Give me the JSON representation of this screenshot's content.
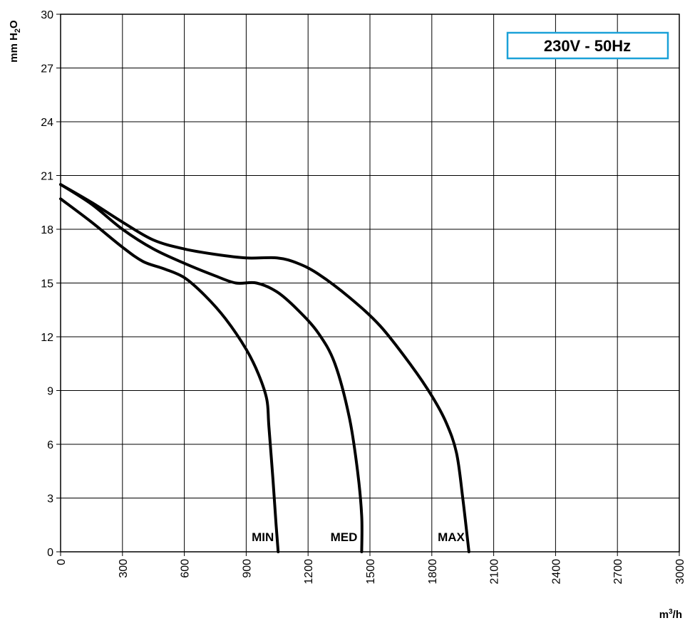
{
  "chart_data": {
    "type": "line",
    "title": "",
    "badge": "230V - 50Hz",
    "xlabel_base": "m",
    "xlabel_sup": "3",
    "xlabel_tail": "/h",
    "ylabel_base": "mm H",
    "ylabel_sub": "2",
    "ylabel_tail": "O",
    "xlim": [
      0,
      3000
    ],
    "ylim": [
      0,
      30
    ],
    "xticks": [
      "0",
      "300",
      "600",
      "900",
      "1200",
      "1500",
      "1800",
      "2100",
      "2400",
      "2700",
      "3000"
    ],
    "yticks": [
      "0",
      "3",
      "6",
      "9",
      "12",
      "15",
      "18",
      "21",
      "24",
      "27",
      "30"
    ],
    "grid": true,
    "series": [
      {
        "name": "MIN",
        "x": [
          0,
          150,
          300,
          400,
          500,
          600,
          700,
          800,
          900,
          960,
          1000,
          1010,
          1030,
          1045,
          1055
        ],
        "y": [
          19.7,
          18.4,
          17.0,
          16.2,
          15.8,
          15.3,
          14.3,
          13.0,
          11.3,
          9.9,
          8.5,
          7.0,
          4.0,
          1.5,
          0
        ]
      },
      {
        "name": "MED",
        "x": [
          0,
          150,
          300,
          450,
          600,
          750,
          850,
          950,
          1050,
          1150,
          1250,
          1330,
          1400,
          1440,
          1460,
          1460
        ],
        "y": [
          20.5,
          19.4,
          18.0,
          16.9,
          16.1,
          15.4,
          15.0,
          15.0,
          14.5,
          13.5,
          12.2,
          10.5,
          7.5,
          4.5,
          2.0,
          0
        ]
      },
      {
        "name": "MAX",
        "x": [
          0,
          150,
          300,
          450,
          600,
          750,
          900,
          1050,
          1150,
          1250,
          1400,
          1550,
          1700,
          1800,
          1870,
          1920,
          1950,
          1980
        ],
        "y": [
          20.5,
          19.5,
          18.4,
          17.4,
          16.9,
          16.6,
          16.4,
          16.4,
          16.1,
          15.5,
          14.2,
          12.6,
          10.4,
          8.7,
          7.2,
          5.5,
          3.0,
          0
        ]
      }
    ],
    "labels": [
      {
        "text": "MIN",
        "x": 1055
      },
      {
        "text": "MED",
        "x": 1460
      },
      {
        "text": "MAX",
        "x": 1980
      }
    ]
  }
}
